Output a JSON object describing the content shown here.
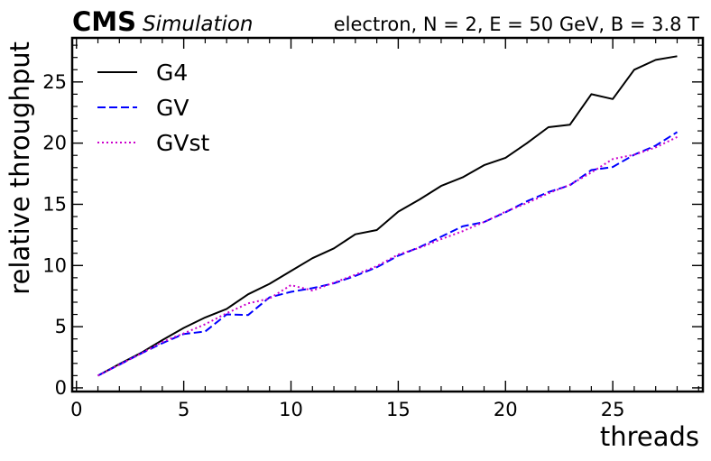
{
  "header": {
    "experiment": "CMS",
    "tag": "Simulation",
    "conditions": "electron, N = 2, E = 50 GeV, B = 3.8 T"
  },
  "chart_data": {
    "type": "line",
    "title": "",
    "xlabel": "threads",
    "ylabel": "relative throughput",
    "xlim": [
      -0.2,
      29.2
    ],
    "ylim": [
      -0.3,
      28.6
    ],
    "xticks": [
      0,
      5,
      10,
      15,
      20,
      25
    ],
    "yticks": [
      0,
      5,
      10,
      15,
      20,
      25
    ],
    "grid": false,
    "legend_position": "top-left",
    "x": [
      1,
      2,
      3,
      4,
      5,
      6,
      7,
      8,
      9,
      10,
      11,
      12,
      13,
      14,
      15,
      16,
      17,
      18,
      19,
      20,
      21,
      22,
      23,
      24,
      25,
      26,
      27,
      28
    ],
    "series": [
      {
        "name": "G4",
        "color": "#000000",
        "style": "solid",
        "values": [
          1.0,
          1.95,
          2.85,
          3.9,
          4.9,
          5.75,
          6.45,
          7.65,
          8.5,
          9.55,
          10.6,
          11.4,
          12.55,
          12.9,
          14.4,
          15.4,
          16.5,
          17.2,
          18.2,
          18.8,
          20.0,
          21.3,
          21.5,
          24.0,
          23.6,
          26.0,
          26.8,
          27.1
        ]
      },
      {
        "name": "GV",
        "color": "#0000ff",
        "style": "dashed",
        "values": [
          1.0,
          1.9,
          2.8,
          3.65,
          4.4,
          4.6,
          6.0,
          5.95,
          7.4,
          7.85,
          8.15,
          8.55,
          9.15,
          9.85,
          10.8,
          11.5,
          12.35,
          13.2,
          13.55,
          14.35,
          15.25,
          16.0,
          16.55,
          17.8,
          18.05,
          19.05,
          19.8,
          20.9
        ]
      },
      {
        "name": "GVst",
        "color": "#cc00cc",
        "style": "dotted",
        "values": [
          1.0,
          1.9,
          2.8,
          3.75,
          4.45,
          5.2,
          6.1,
          6.9,
          7.3,
          8.4,
          7.95,
          8.6,
          9.25,
          9.95,
          10.9,
          11.45,
          12.15,
          12.8,
          13.55,
          14.4,
          15.1,
          15.9,
          16.6,
          17.6,
          18.7,
          19.05,
          19.65,
          20.5
        ]
      }
    ]
  }
}
